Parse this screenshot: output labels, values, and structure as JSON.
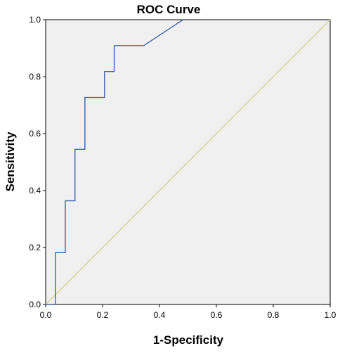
{
  "chart_data": {
    "type": "line",
    "title": "ROC Curve",
    "xlabel": "1-Specificity",
    "ylabel": "Sensitivity",
    "xlim": [
      0.0,
      1.0
    ],
    "ylim": [
      0.0,
      1.0
    ],
    "x_ticks": [
      "0.0",
      "0.2",
      "0.4",
      "0.6",
      "0.8",
      "1.0"
    ],
    "y_ticks": [
      "0.0",
      "0.2",
      "0.4",
      "0.6",
      "0.8",
      "1.0"
    ],
    "grid": false,
    "legend": "none",
    "colors": {
      "plot_background": "#f0f0f0",
      "roc_curve": "#3b64a8",
      "reference_line": "#d9d8a0"
    },
    "series": [
      {
        "x": [
          0.0,
          0.034,
          0.034,
          0.069,
          0.069,
          0.103,
          0.103,
          0.138,
          0.138,
          0.207,
          0.207,
          0.241,
          0.241,
          0.345,
          0.483
        ],
        "y": [
          0.0,
          0.0,
          0.182,
          0.182,
          0.364,
          0.364,
          0.545,
          0.545,
          0.727,
          0.727,
          0.818,
          0.818,
          0.909,
          0.909,
          1.0
        ]
      },
      {
        "x": [
          0.0,
          1.0
        ],
        "y": [
          0.0,
          1.0
        ]
      }
    ]
  }
}
